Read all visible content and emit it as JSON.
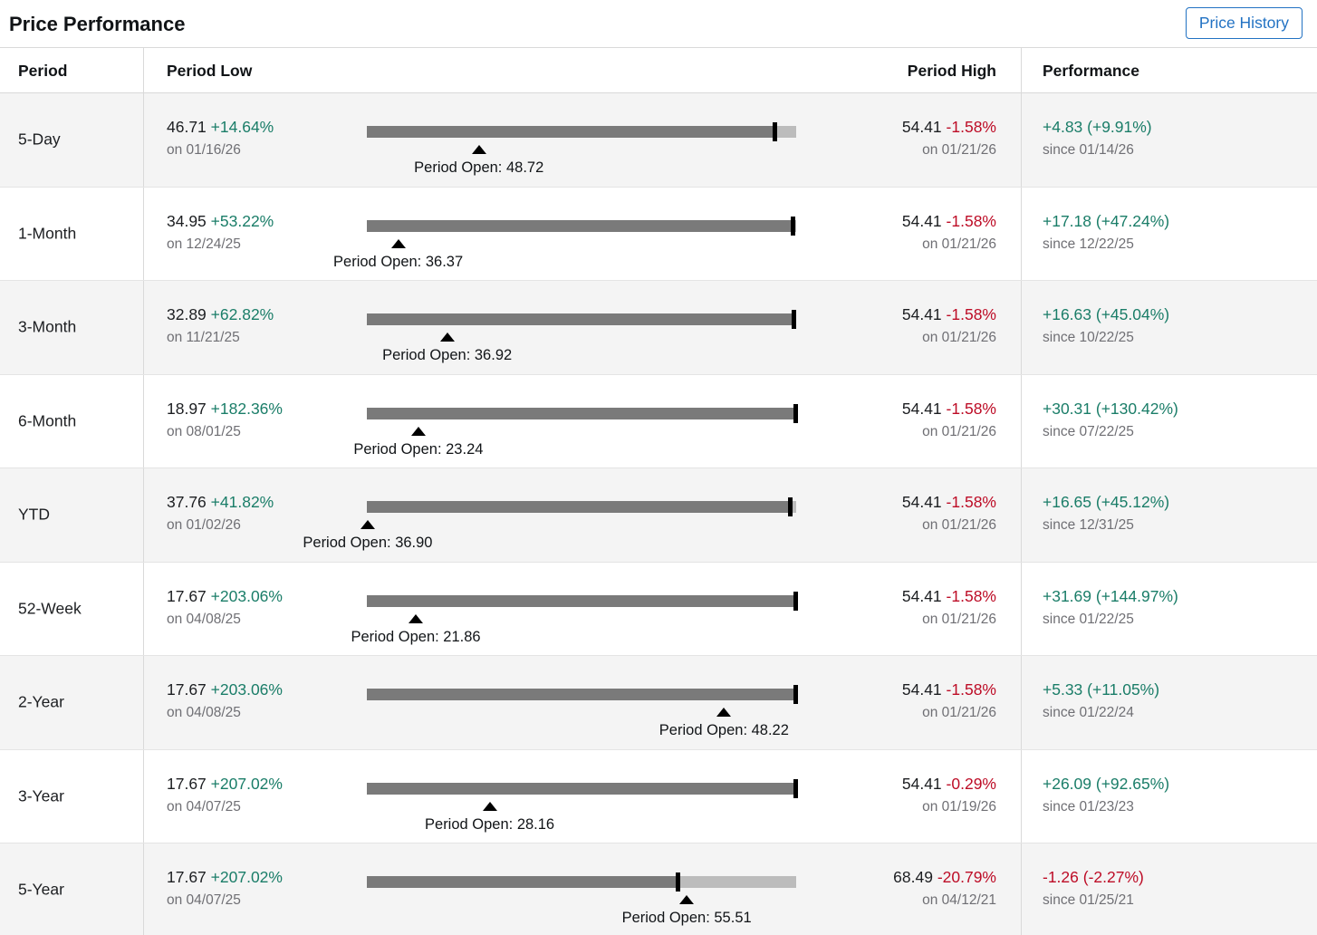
{
  "header": {
    "title": "Price Performance",
    "button_label": "Price History"
  },
  "columns": {
    "period": "Period",
    "low": "Period Low",
    "high": "Period High",
    "performance": "Performance"
  },
  "colors": {
    "positive_green": "#1a7d68",
    "negative_red": "#bd0c26",
    "secondary_gray": "#6f6f74",
    "bar_dark": "#7a7a7a",
    "bar_light": "#bcbcbc",
    "tick_black": "#000000",
    "row_alt_background": "#f4f4f4",
    "button_blue": "#2272c3",
    "border_gray": "#d9d9d9"
  },
  "rows": [
    {
      "period": "5-Day",
      "low_price": "46.71",
      "low_pct": "+14.64%",
      "low_date": "on 01/16/26",
      "open_label": "Period Open: 48.72",
      "open_pos": 26.1,
      "tick_pos": 94.6,
      "high_price": "54.41",
      "high_pct": "-1.58%",
      "high_date": "on 01/21/26",
      "perf_value": "+4.83 (+9.91%)",
      "perf_date": "since 01/14/26",
      "perf_negative": false
    },
    {
      "period": "1-Month",
      "low_price": "34.95",
      "low_pct": "+53.22%",
      "low_date": "on 12/24/25",
      "open_label": "Period Open: 36.37",
      "open_pos": 7.3,
      "tick_pos": 98.7,
      "high_price": "54.41",
      "high_pct": "-1.58%",
      "high_date": "on 01/21/26",
      "perf_value": "+17.18 (+47.24%)",
      "perf_date": "since 12/22/25",
      "perf_negative": false
    },
    {
      "period": "3-Month",
      "low_price": "32.89",
      "low_pct": "+62.82%",
      "low_date": "on 11/21/25",
      "open_label": "Period Open: 36.92",
      "open_pos": 18.7,
      "tick_pos": 99.0,
      "high_price": "54.41",
      "high_pct": "-1.58%",
      "high_date": "on 01/21/26",
      "perf_value": "+16.63 (+45.04%)",
      "perf_date": "since 10/22/25",
      "perf_negative": false
    },
    {
      "period": "6-Month",
      "low_price": "18.97",
      "low_pct": "+182.36%",
      "low_date": "on 08/01/25",
      "open_label": "Period Open: 23.24",
      "open_pos": 12.0,
      "tick_pos": 99.3,
      "high_price": "54.41",
      "high_pct": "-1.58%",
      "high_date": "on 01/21/26",
      "perf_value": "+30.31 (+130.42%)",
      "perf_date": "since 07/22/25",
      "perf_negative": false
    },
    {
      "period": "YTD",
      "low_price": "37.76",
      "low_pct": "+41.82%",
      "low_date": "on 01/02/26",
      "open_label": "Period Open: 36.90",
      "open_pos": 0.2,
      "tick_pos": 98.0,
      "high_price": "54.41",
      "high_pct": "-1.58%",
      "high_date": "on 01/21/26",
      "perf_value": "+16.65 (+45.12%)",
      "perf_date": "since 12/31/25",
      "perf_negative": false
    },
    {
      "period": "52-Week",
      "low_price": "17.67",
      "low_pct": "+203.06%",
      "low_date": "on 04/08/25",
      "open_label": "Period Open: 21.86",
      "open_pos": 11.4,
      "tick_pos": 99.4,
      "high_price": "54.41",
      "high_pct": "-1.58%",
      "high_date": "on 01/21/26",
      "perf_value": "+31.69 (+144.97%)",
      "perf_date": "since 01/22/25",
      "perf_negative": false
    },
    {
      "period": "2-Year",
      "low_price": "17.67",
      "low_pct": "+203.06%",
      "low_date": "on 04/08/25",
      "open_label": "Period Open: 48.22",
      "open_pos": 83.2,
      "tick_pos": 99.4,
      "high_price": "54.41",
      "high_pct": "-1.58%",
      "high_date": "on 01/21/26",
      "perf_value": "+5.33 (+11.05%)",
      "perf_date": "since 01/22/24",
      "perf_negative": false
    },
    {
      "period": "3-Year",
      "low_price": "17.67",
      "low_pct": "+207.02%",
      "low_date": "on 04/07/25",
      "open_label": "Period Open: 28.16",
      "open_pos": 28.6,
      "tick_pos": 99.4,
      "high_price": "54.41",
      "high_pct": "-0.29%",
      "high_date": "on 01/19/26",
      "perf_value": "+26.09 (+92.65%)",
      "perf_date": "since 01/23/23",
      "perf_negative": false
    },
    {
      "period": "5-Year",
      "low_price": "17.67",
      "low_pct": "+207.02%",
      "low_date": "on 04/07/25",
      "open_label": "Period Open: 55.51",
      "open_pos": 74.5,
      "tick_pos": 72.0,
      "high_price": "68.49",
      "high_pct": "-20.79%",
      "high_date": "on 04/12/21",
      "perf_value": "-1.26 (-2.27%)",
      "perf_date": "since 01/25/21",
      "perf_negative": true
    }
  ]
}
